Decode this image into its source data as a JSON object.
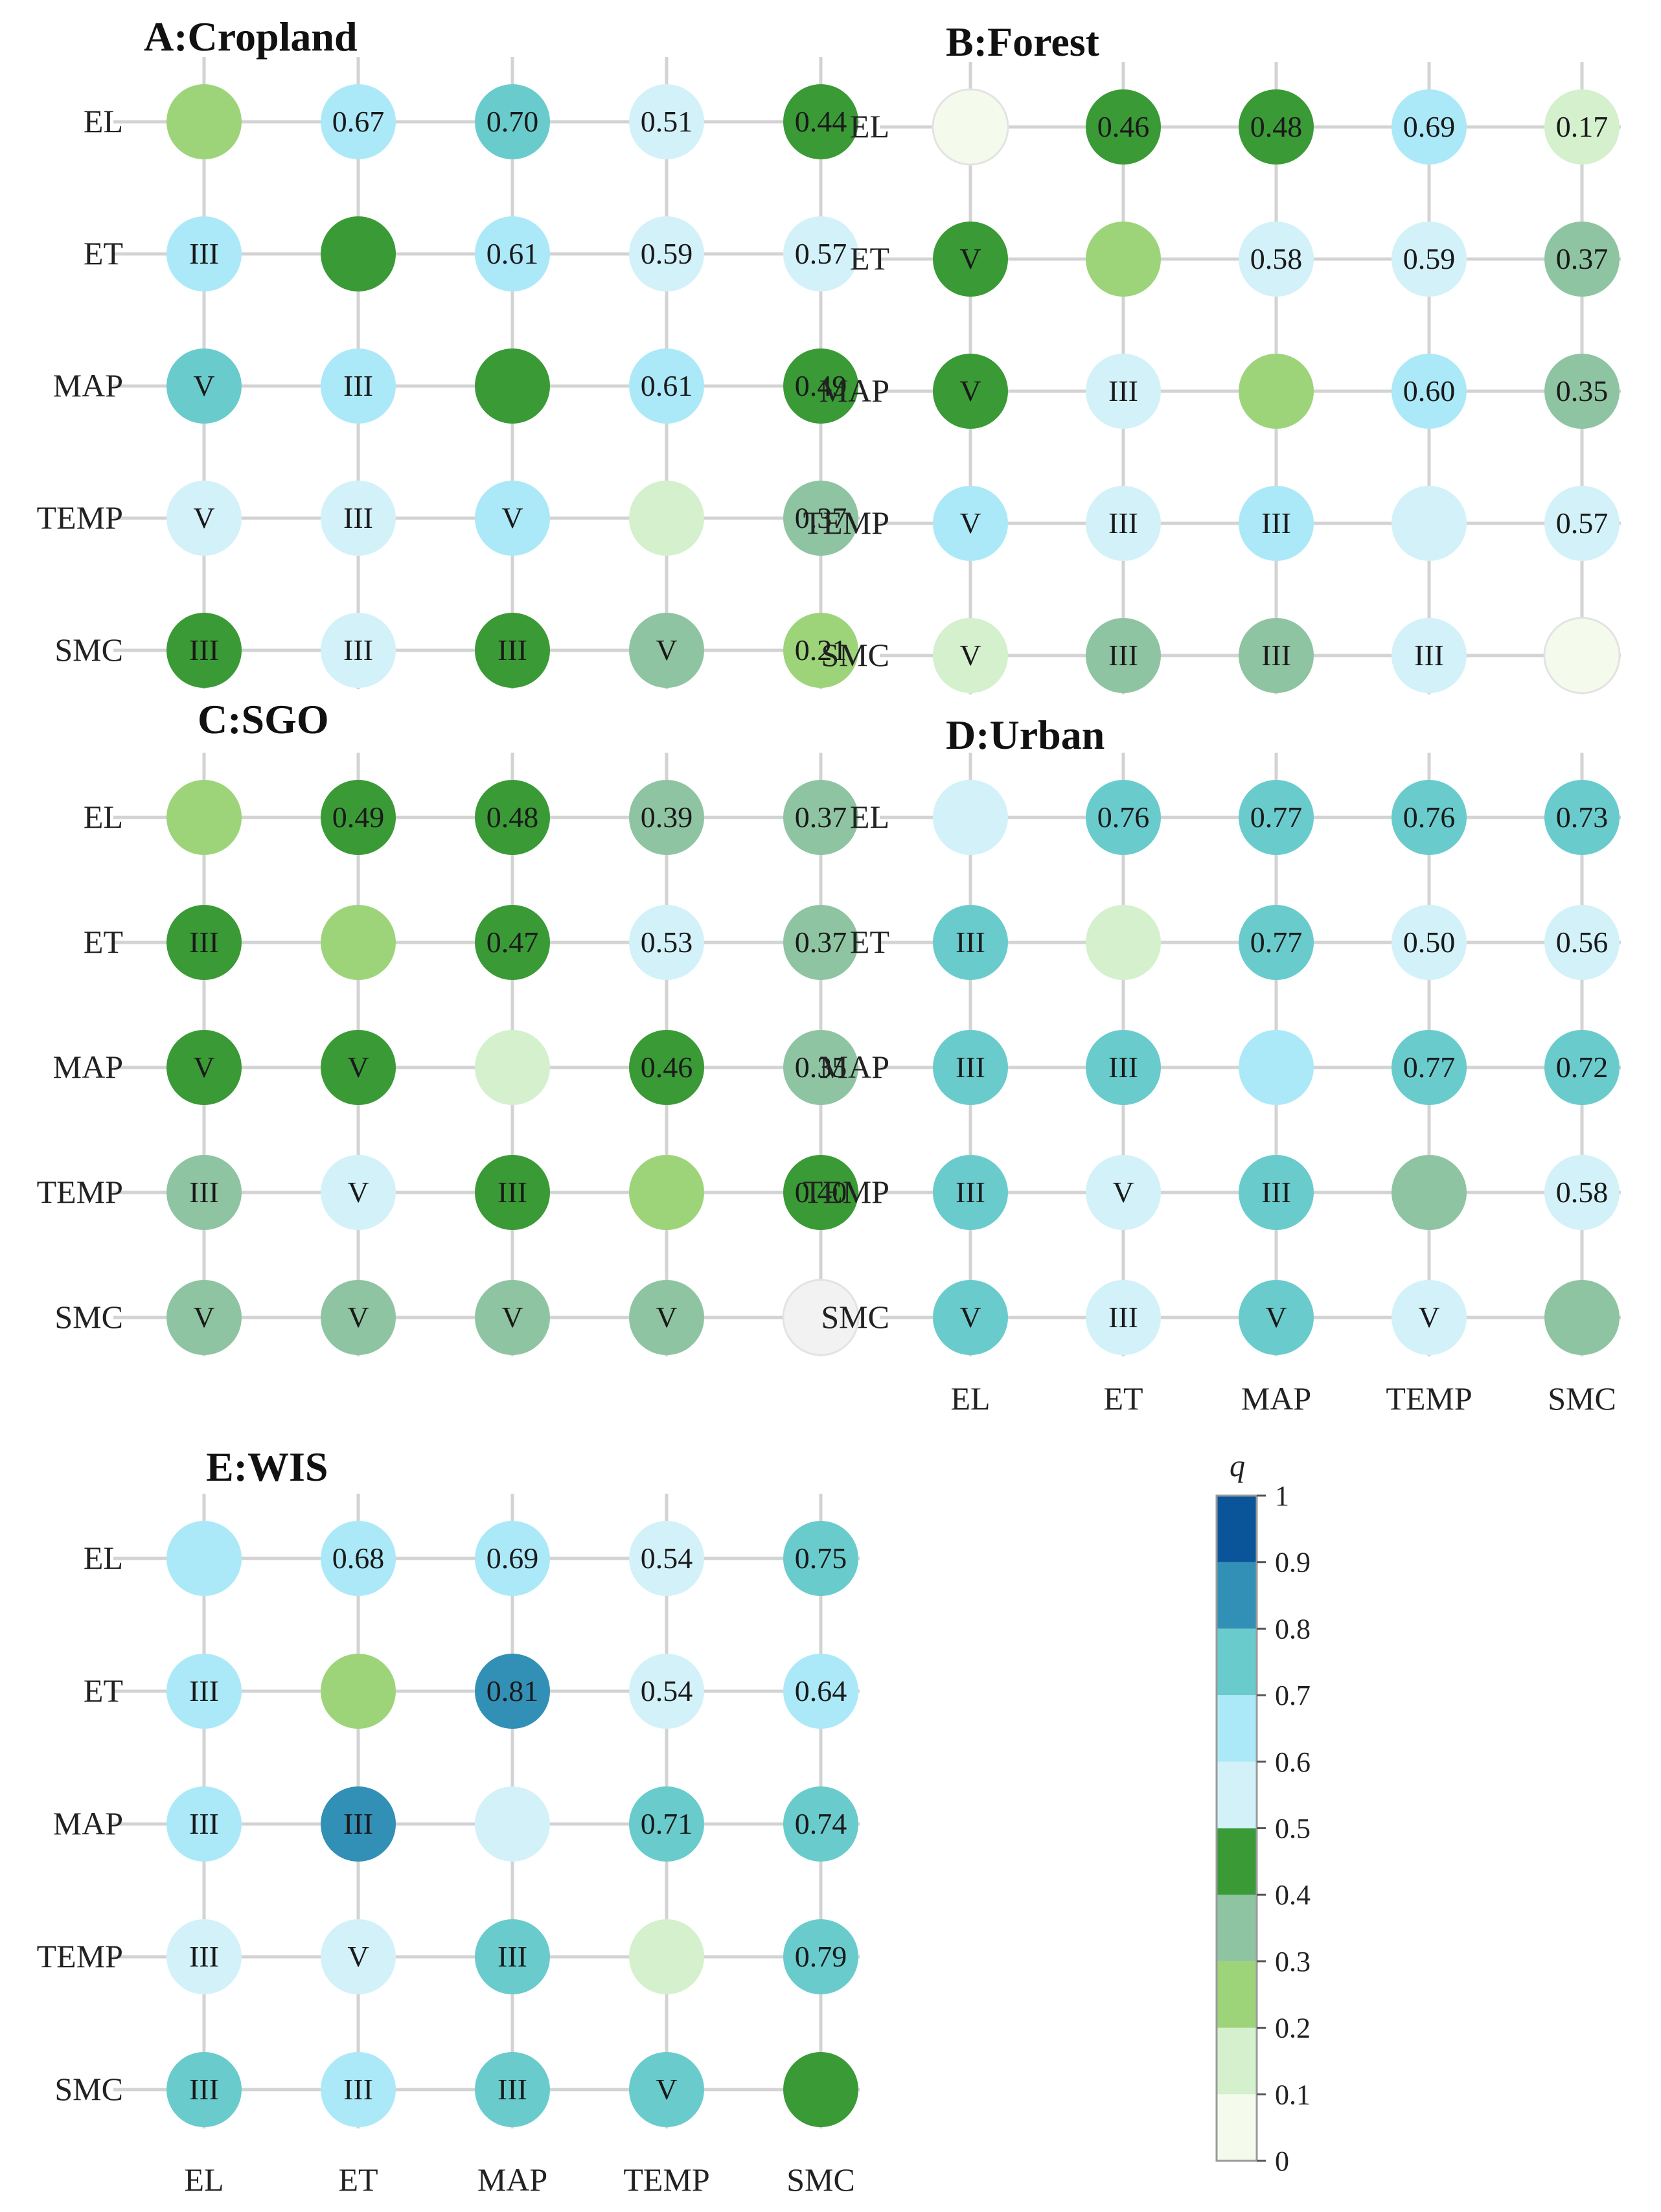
{
  "chart_data": [
    {
      "type": "heatmap",
      "panel": "A",
      "title": "A:Cropland",
      "rows": [
        "EL",
        "ET",
        "MAP",
        "TEMP",
        "SMC"
      ],
      "cols": [
        "EL",
        "ET",
        "MAP",
        "TEMP",
        "SMC"
      ],
      "show_xlabels": false,
      "q": [
        [
          0.25,
          0.67,
          0.7,
          0.51,
          0.44
        ],
        [
          0.65,
          0.45,
          0.61,
          0.59,
          0.57
        ],
        [
          0.75,
          0.65,
          0.45,
          0.61,
          0.49
        ],
        [
          0.55,
          0.55,
          0.65,
          0.15,
          0.37
        ],
        [
          0.45,
          0.55,
          0.45,
          0.35,
          0.21
        ]
      ],
      "labels": [
        [
          "",
          "0.67",
          "0.70",
          "0.51",
          "0.44"
        ],
        [
          "III",
          "",
          "0.61",
          "0.59",
          "0.57"
        ],
        [
          "V",
          "III",
          "",
          "0.61",
          "0.49"
        ],
        [
          "V",
          "III",
          "V",
          "",
          "0.37"
        ],
        [
          "III",
          "III",
          "III",
          "V",
          "0.21"
        ]
      ]
    },
    {
      "type": "heatmap",
      "panel": "B",
      "title": "B:Forest",
      "rows": [
        "EL",
        "ET",
        "MAP",
        "TEMP",
        "SMC"
      ],
      "cols": [
        "EL",
        "ET",
        "MAP",
        "TEMP",
        "SMC"
      ],
      "show_xlabels": false,
      "q": [
        [
          0.05,
          0.46,
          0.48,
          0.69,
          0.17
        ],
        [
          0.45,
          0.25,
          0.58,
          0.59,
          0.37
        ],
        [
          0.45,
          0.55,
          0.25,
          0.6,
          0.35
        ],
        [
          0.65,
          0.55,
          0.65,
          0.55,
          0.57
        ],
        [
          0.15,
          0.35,
          0.35,
          0.55,
          0.05
        ]
      ],
      "labels": [
        [
          "",
          "0.46",
          "0.48",
          "0.69",
          "0.17"
        ],
        [
          "V",
          "",
          "0.58",
          "0.59",
          "0.37"
        ],
        [
          "V",
          "III",
          "",
          "0.60",
          "0.35"
        ],
        [
          "V",
          "III",
          "III",
          "",
          "0.57"
        ],
        [
          "V",
          "III",
          "III",
          "III",
          ""
        ]
      ]
    },
    {
      "type": "heatmap",
      "panel": "C",
      "title": "C:SGO",
      "rows": [
        "EL",
        "ET",
        "MAP",
        "TEMP",
        "SMC"
      ],
      "cols": [
        "EL",
        "ET",
        "MAP",
        "TEMP",
        "SMC"
      ],
      "show_xlabels": false,
      "q": [
        [
          0.25,
          0.49,
          0.48,
          0.39,
          0.37
        ],
        [
          0.45,
          0.25,
          0.47,
          0.53,
          0.37
        ],
        [
          0.45,
          0.45,
          0.15,
          0.46,
          0.35
        ],
        [
          0.35,
          0.55,
          0.45,
          0.25,
          0.4
        ],
        [
          0.35,
          0.35,
          0.35,
          0.35,
          -1
        ]
      ],
      "labels": [
        [
          "",
          "0.49",
          "0.48",
          "0.39",
          "0.37"
        ],
        [
          "III",
          "",
          "0.47",
          "0.53",
          "0.37"
        ],
        [
          "V",
          "V",
          "",
          "0.46",
          "0.35"
        ],
        [
          "III",
          "V",
          "III",
          "",
          "0.40"
        ],
        [
          "V",
          "V",
          "V",
          "V",
          ""
        ]
      ]
    },
    {
      "type": "heatmap",
      "panel": "D",
      "title": "D:Urban",
      "rows": [
        "EL",
        "ET",
        "MAP",
        "TEMP",
        "SMC"
      ],
      "cols": [
        "EL",
        "ET",
        "MAP",
        "TEMP",
        "SMC"
      ],
      "show_xlabels": true,
      "q": [
        [
          0.55,
          0.76,
          0.77,
          0.76,
          0.73
        ],
        [
          0.75,
          0.15,
          0.77,
          0.5,
          0.56
        ],
        [
          0.75,
          0.75,
          0.65,
          0.77,
          0.72
        ],
        [
          0.75,
          0.55,
          0.75,
          0.35,
          0.58
        ],
        [
          0.75,
          0.55,
          0.75,
          0.55,
          0.35
        ]
      ],
      "labels": [
        [
          "",
          "0.76",
          "0.77",
          "0.76",
          "0.73"
        ],
        [
          "III",
          "",
          "0.77",
          "0.50",
          "0.56"
        ],
        [
          "III",
          "III",
          "",
          "0.77",
          "0.72"
        ],
        [
          "III",
          "V",
          "III",
          "",
          "0.58"
        ],
        [
          "V",
          "III",
          "V",
          "V",
          ""
        ]
      ]
    },
    {
      "type": "heatmap",
      "panel": "E",
      "title": "E:WIS",
      "rows": [
        "EL",
        "ET",
        "MAP",
        "TEMP",
        "SMC"
      ],
      "cols": [
        "EL",
        "ET",
        "MAP",
        "TEMP",
        "SMC"
      ],
      "show_xlabels": true,
      "q": [
        [
          0.65,
          0.68,
          0.69,
          0.54,
          0.75
        ],
        [
          0.65,
          0.25,
          0.81,
          0.54,
          0.64
        ],
        [
          0.65,
          0.85,
          0.55,
          0.71,
          0.74
        ],
        [
          0.55,
          0.55,
          0.75,
          0.15,
          0.79
        ],
        [
          0.75,
          0.65,
          0.75,
          0.75,
          0.45
        ]
      ],
      "labels": [
        [
          "",
          "0.68",
          "0.69",
          "0.54",
          "0.75"
        ],
        [
          "III",
          "",
          "0.81",
          "0.54",
          "0.64"
        ],
        [
          "III",
          "III",
          "",
          "0.71",
          "0.74"
        ],
        [
          "III",
          "V",
          "III",
          "",
          "0.79"
        ],
        [
          "III",
          "III",
          "III",
          "V",
          ""
        ]
      ]
    }
  ],
  "legend": {
    "title": "q",
    "ticks": [
      "0",
      "0.1",
      "0.2",
      "0.3",
      "0.4",
      "0.5",
      "0.6",
      "0.7",
      "0.8",
      "0.9",
      "1"
    ],
    "bins": [
      {
        "from": 0.0,
        "to": 0.1,
        "color": "#f5fbec"
      },
      {
        "from": 0.1,
        "to": 0.2,
        "color": "#d4f0cd"
      },
      {
        "from": 0.2,
        "to": 0.3,
        "color": "#9dd47a"
      },
      {
        "from": 0.3,
        "to": 0.4,
        "color": "#8fc4a2"
      },
      {
        "from": 0.4,
        "to": 0.5,
        "color": "#3a9a36"
      },
      {
        "from": 0.5,
        "to": 0.6,
        "color": "#d3f1f8"
      },
      {
        "from": 0.6,
        "to": 0.7,
        "color": "#ace9f8"
      },
      {
        "from": 0.7,
        "to": 0.8,
        "color": "#6acbcd"
      },
      {
        "from": 0.8,
        "to": 0.9,
        "color": "#3290b6"
      },
      {
        "from": 0.9,
        "to": 1.0,
        "color": "#0a5599"
      }
    ],
    "missing_color": "#f2f2f2"
  }
}
